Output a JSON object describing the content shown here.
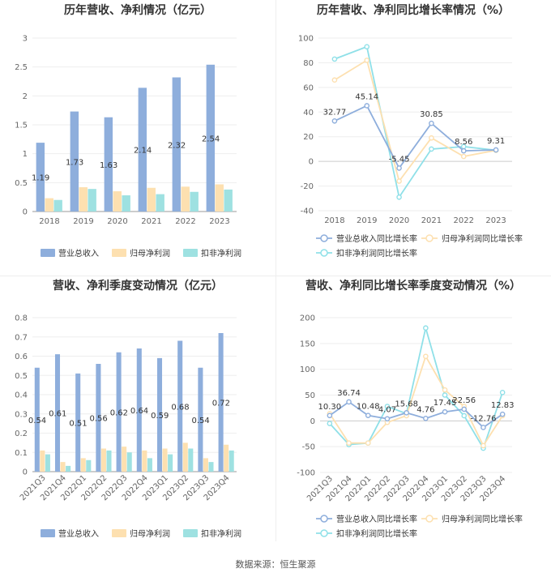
{
  "footer": {
    "source_text": "数据来源：恒生聚源"
  },
  "colors": {
    "revenue": "#8eaedc",
    "net_profit": "#fde0b0",
    "deducted_profit": "#9ee1e1",
    "revenue_line": "#8eaedc",
    "net_profit_line": "#fde0b0",
    "deducted_line": "#8fe0e8"
  },
  "chart_data": [
    {
      "id": "annual-amount",
      "type": "bar",
      "title": "历年营收、净利情况（亿元）",
      "categories": [
        "2018",
        "2019",
        "2020",
        "2021",
        "2022",
        "2023"
      ],
      "ylim": [
        0,
        3
      ],
      "yticks": [
        0,
        0.5,
        1,
        1.5,
        2,
        2.5,
        3
      ],
      "ytick_labels": [
        "0",
        "0.5",
        "1",
        "1.5",
        "2",
        "2.5",
        "3"
      ],
      "rotate_x": false,
      "series": [
        {
          "name": "营业总收入",
          "color": "#8eaedc",
          "values": [
            1.19,
            1.73,
            1.63,
            2.14,
            2.32,
            2.54
          ],
          "labels": [
            "1.19",
            "1.73",
            "1.63",
            "2.14",
            "2.32",
            "2.54"
          ]
        },
        {
          "name": "归母净利润",
          "color": "#fde0b0",
          "values": [
            0.23,
            0.42,
            0.35,
            0.41,
            0.43,
            0.47
          ]
        },
        {
          "name": "扣非净利润",
          "color": "#9ee1e1",
          "values": [
            0.2,
            0.39,
            0.28,
            0.3,
            0.34,
            0.38
          ]
        }
      ]
    },
    {
      "id": "annual-growth",
      "type": "line",
      "title": "历年营收、净利同比增长率情况（%）",
      "categories": [
        "2018",
        "2019",
        "2020",
        "2021",
        "2022",
        "2023"
      ],
      "ylim": [
        -40,
        100
      ],
      "yticks": [
        -40,
        -20,
        0,
        20,
        40,
        60,
        80,
        100
      ],
      "ytick_labels": [
        "-40",
        "-20",
        "0",
        "20",
        "40",
        "60",
        "80",
        "100"
      ],
      "rotate_x": false,
      "series": [
        {
          "name": "营业总收入同比增长率",
          "color": "#8eaedc",
          "values": [
            32.77,
            45.14,
            -5.45,
            30.85,
            8.56,
            9.31
          ],
          "labels": [
            "32.77",
            "45.14",
            "-5.45",
            "30.85",
            "8.56",
            "9.31"
          ]
        },
        {
          "name": "归母净利润同比增长率",
          "color": "#fde0b0",
          "values": [
            66,
            82,
            -16,
            19,
            4,
            9
          ]
        },
        {
          "name": "扣非净利润同比增长率",
          "color": "#8fe0e8",
          "values": [
            83,
            93,
            -29,
            10,
            12,
            9
          ]
        }
      ]
    },
    {
      "id": "quarterly-amount",
      "type": "bar",
      "title": "营收、净利季度变动情况（亿元）",
      "categories": [
        "2021Q3",
        "2021Q4",
        "2022Q1",
        "2022Q2",
        "2022Q3",
        "2022Q4",
        "2023Q1",
        "2023Q2",
        "2023Q3",
        "2023Q4"
      ],
      "ylim": [
        0,
        0.8
      ],
      "yticks": [
        0,
        0.1,
        0.2,
        0.3,
        0.4,
        0.5,
        0.6,
        0.7,
        0.8
      ],
      "ytick_labels": [
        "0",
        "0.1",
        "0.2",
        "0.3",
        "0.4",
        "0.5",
        "0.6",
        "0.7",
        "0.8"
      ],
      "rotate_x": true,
      "series": [
        {
          "name": "营业总收入",
          "color": "#8eaedc",
          "values": [
            0.54,
            0.61,
            0.51,
            0.56,
            0.62,
            0.64,
            0.59,
            0.68,
            0.54,
            0.72
          ],
          "labels": [
            "0.54",
            "0.61",
            "0.51",
            "0.56",
            "0.62",
            "0.64",
            "0.59",
            "0.68",
            "0.54",
            "0.72"
          ]
        },
        {
          "name": "归母净利润",
          "color": "#fde0b0",
          "values": [
            0.11,
            0.05,
            0.07,
            0.12,
            0.13,
            0.11,
            0.12,
            0.15,
            0.07,
            0.14
          ]
        },
        {
          "name": "扣非净利润",
          "color": "#9ee1e1",
          "values": [
            0.09,
            0.03,
            0.06,
            0.11,
            0.1,
            0.07,
            0.09,
            0.12,
            0.05,
            0.11
          ]
        }
      ]
    },
    {
      "id": "quarterly-growth",
      "type": "line",
      "title": "营收、净利同比增长率季度变动情况（%）",
      "categories": [
        "2021Q3",
        "2021Q4",
        "2022Q1",
        "2022Q2",
        "2022Q3",
        "2022Q4",
        "2023Q1",
        "2023Q2",
        "2023Q3",
        "2023Q4"
      ],
      "ylim": [
        -100,
        200
      ],
      "yticks": [
        -100,
        -50,
        0,
        50,
        100,
        150,
        200
      ],
      "ytick_labels": [
        "-100",
        "-50",
        "0",
        "50",
        "100",
        "150",
        "200"
      ],
      "rotate_x": true,
      "series": [
        {
          "name": "营业总收入同比增长率",
          "color": "#8eaedc",
          "values": [
            10.3,
            36.74,
            10.48,
            4.07,
            15.68,
            4.76,
            17.45,
            22.56,
            -12.76,
            12.83
          ],
          "labels": [
            "10.30",
            "36.74",
            "10.48",
            "4.07",
            "15.68",
            "4.76",
            "17.45",
            "22.56",
            "-12.76",
            "12.83"
          ]
        },
        {
          "name": "归母净利润同比增长率",
          "color": "#fde0b0",
          "values": [
            14,
            -43,
            -43,
            -3,
            10,
            125,
            60,
            28,
            -48,
            10
          ]
        },
        {
          "name": "扣非净利润同比增长率",
          "color": "#8fe0e8",
          "values": [
            -5,
            -46,
            -43,
            28,
            14,
            180,
            50,
            10,
            -53,
            55
          ]
        }
      ]
    }
  ]
}
